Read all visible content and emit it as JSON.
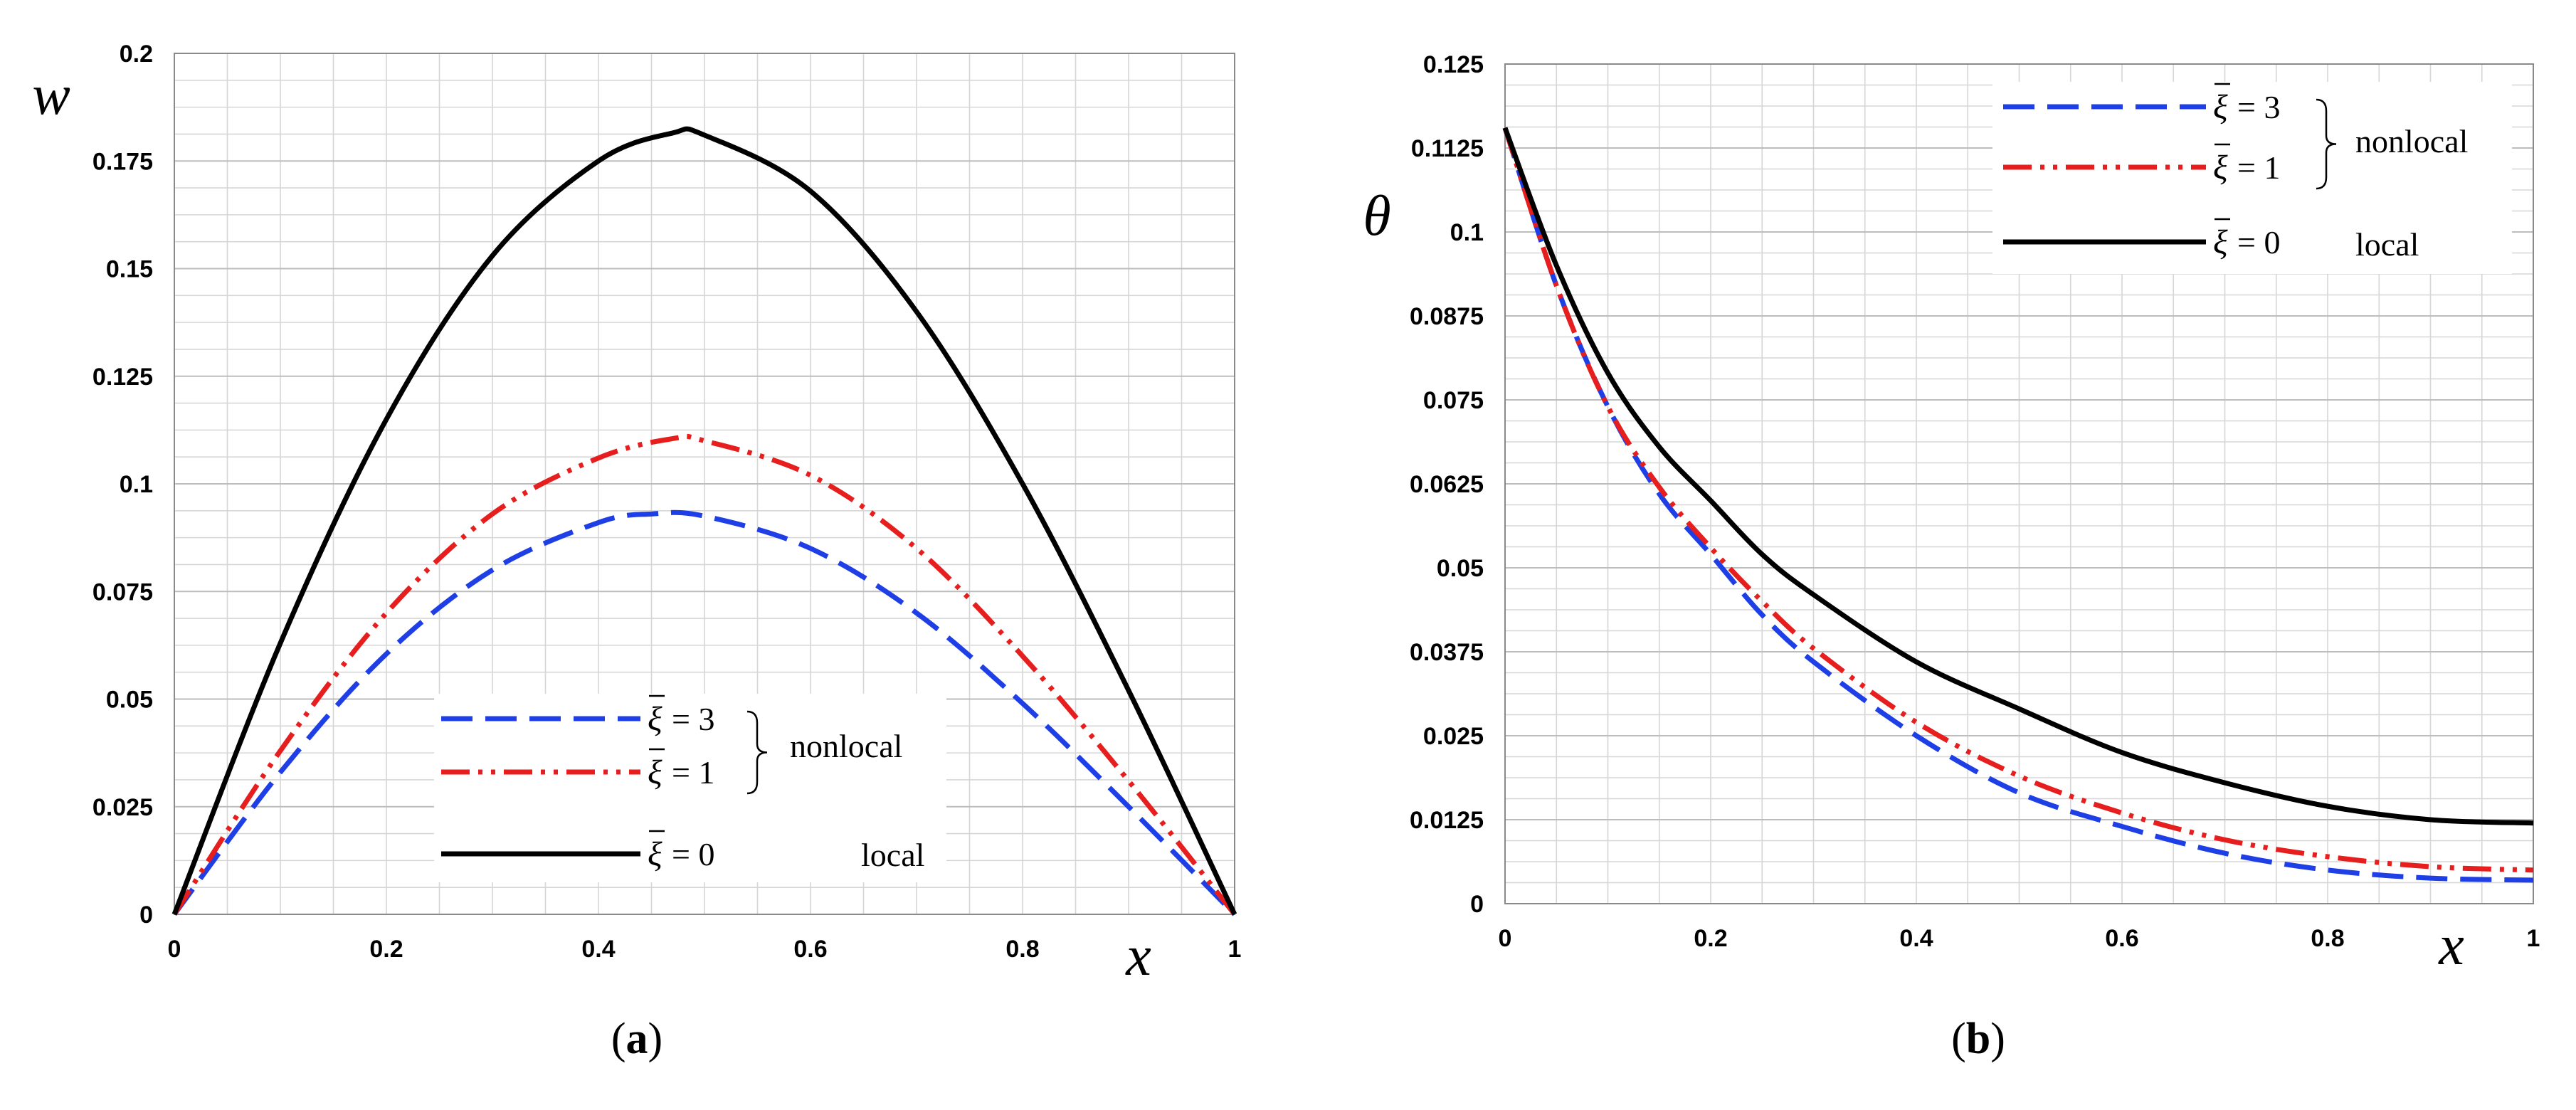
{
  "chart_data": [
    {
      "id": "a",
      "type": "line",
      "caption_letter": "a",
      "ylabel": "w",
      "xlabel": "x",
      "xlim": [
        0,
        1
      ],
      "ylim": [
        0,
        0.2
      ],
      "xticks": [
        "0",
        "0.2",
        "0.4",
        "0.6",
        "0.8",
        "1"
      ],
      "xtick_values": [
        0,
        0.2,
        0.4,
        0.6,
        0.8,
        1
      ],
      "yticks": [
        "0",
        "0.025",
        "0.05",
        "0.075",
        "0.1",
        "0.125",
        "0.15",
        "0.175",
        "0.2"
      ],
      "ytick_values": [
        0,
        0.025,
        0.05,
        0.075,
        0.1,
        0.125,
        0.15,
        0.175,
        0.2
      ],
      "grid": true,
      "legend_position": "bottom-center",
      "legend_groups": [
        {
          "label": "nonlocal",
          "series": [
            0,
            1
          ]
        },
        {
          "label": "local",
          "series": [
            2
          ]
        }
      ],
      "series": [
        {
          "name": "ξ̄ = 3",
          "symbol": "ξ",
          "value_text": "= 3",
          "color": "#1f3fe6",
          "style": "dashed",
          "x": [
            0,
            0.1,
            0.2,
            0.3,
            0.4,
            0.45,
            0.5,
            0.6,
            0.7,
            0.8,
            0.9,
            1
          ],
          "y": [
            0,
            0.033,
            0.0605,
            0.08,
            0.091,
            0.093,
            0.0925,
            0.085,
            0.07,
            0.049,
            0.025,
            0
          ]
        },
        {
          "name": "ξ̄ = 1",
          "symbol": "ξ",
          "value_text": "= 1",
          "color": "#e61e1e",
          "style": "dashdotdot",
          "x": [
            0,
            0.1,
            0.2,
            0.3,
            0.4,
            0.47,
            0.5,
            0.6,
            0.7,
            0.8,
            0.9,
            1
          ],
          "y": [
            0,
            0.038,
            0.07,
            0.093,
            0.106,
            0.1105,
            0.11,
            0.102,
            0.085,
            0.06,
            0.031,
            0
          ]
        },
        {
          "name": "ξ̄ = 0",
          "symbol": "ξ",
          "value_text": "= 0",
          "color": "#000000",
          "style": "solid",
          "x": [
            0,
            0.1,
            0.2,
            0.3,
            0.4,
            0.47,
            0.5,
            0.6,
            0.7,
            0.8,
            0.9,
            1
          ],
          "y": [
            0,
            0.063,
            0.115,
            0.153,
            0.175,
            0.1815,
            0.181,
            0.168,
            0.14,
            0.1,
            0.052,
            0
          ]
        }
      ]
    },
    {
      "id": "b",
      "type": "line",
      "caption_letter": "b",
      "ylabel": "θ",
      "xlabel": "x",
      "xlim": [
        0,
        1
      ],
      "ylim": [
        0,
        0.125
      ],
      "xticks": [
        "0",
        "0.2",
        "0.4",
        "0.6",
        "0.8",
        "1"
      ],
      "xtick_values": [
        0,
        0.2,
        0.4,
        0.6,
        0.8,
        1
      ],
      "yticks": [
        "0",
        "0.0125",
        "0.025",
        "0.0375",
        "0.05",
        "0.0625",
        "0.075",
        "0.0875",
        "0.1",
        "0.1125",
        "0.125"
      ],
      "ytick_values": [
        0,
        0.0125,
        0.025,
        0.0375,
        0.05,
        0.0625,
        0.075,
        0.0875,
        0.1,
        0.1125,
        0.125
      ],
      "grid": true,
      "legend_position": "top-right",
      "legend_groups": [
        {
          "label": "nonlocal",
          "series": [
            0,
            1
          ]
        },
        {
          "label": "local",
          "series": [
            2
          ]
        }
      ],
      "series": [
        {
          "name": "ξ̄ = 3",
          "symbol": "ξ",
          "value_text": "= 3",
          "color": "#1f3fe6",
          "style": "dashed",
          "x": [
            0,
            0.05,
            0.1,
            0.15,
            0.2,
            0.25,
            0.3,
            0.4,
            0.5,
            0.6,
            0.7,
            0.8,
            0.9,
            1
          ],
          "y": [
            0.1155,
            0.092,
            0.074,
            0.061,
            0.052,
            0.043,
            0.036,
            0.025,
            0.0165,
            0.0115,
            0.0075,
            0.005,
            0.0038,
            0.0035
          ]
        },
        {
          "name": "ξ̄ = 1",
          "symbol": "ξ",
          "value_text": "= 1",
          "color": "#e61e1e",
          "style": "dashdotdot",
          "x": [
            0,
            0.05,
            0.1,
            0.15,
            0.2,
            0.25,
            0.3,
            0.4,
            0.5,
            0.6,
            0.7,
            0.8,
            0.9,
            1
          ],
          "y": [
            0.1155,
            0.092,
            0.074,
            0.062,
            0.053,
            0.045,
            0.038,
            0.027,
            0.019,
            0.0135,
            0.0095,
            0.007,
            0.0055,
            0.005
          ]
        },
        {
          "name": "ξ̄ = 0",
          "symbol": "ξ",
          "value_text": "= 0",
          "color": "#000000",
          "style": "solid",
          "x": [
            0,
            0.05,
            0.1,
            0.15,
            0.2,
            0.25,
            0.3,
            0.4,
            0.5,
            0.6,
            0.7,
            0.8,
            0.9,
            1
          ],
          "y": [
            0.1155,
            0.095,
            0.079,
            0.068,
            0.06,
            0.052,
            0.046,
            0.036,
            0.029,
            0.0225,
            0.018,
            0.0145,
            0.0125,
            0.012
          ]
        }
      ]
    }
  ]
}
